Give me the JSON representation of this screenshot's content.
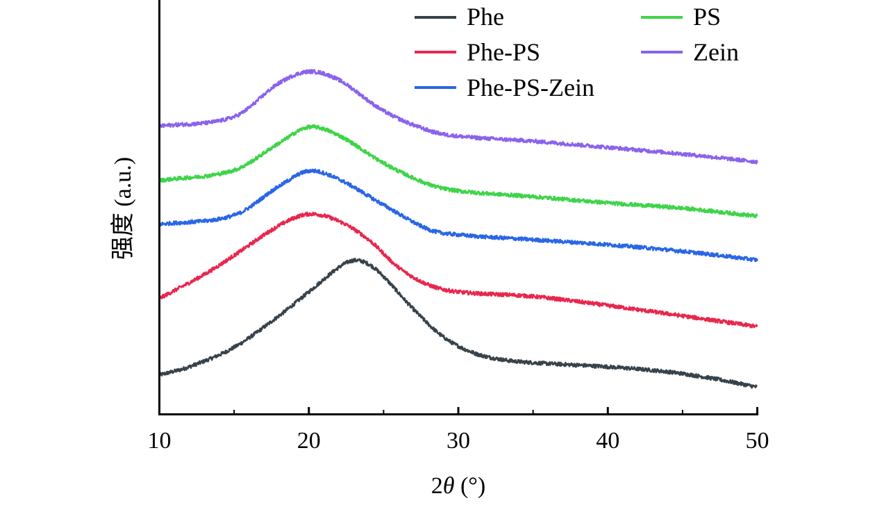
{
  "chart_data": {
    "type": "line",
    "title": "",
    "xlabel_prefix": "2",
    "xlabel_symbol": "θ",
    "xlabel_suffix": " (°)",
    "ylabel": "强度 (a.u.)",
    "xlim": [
      10,
      50
    ],
    "ylim": [
      0,
      100
    ],
    "xticks": [
      10,
      20,
      30,
      40,
      50
    ],
    "xtick_labels": [
      "10",
      "20",
      "30",
      "40",
      "50"
    ],
    "minor_xticks": [
      15,
      25,
      35,
      45
    ],
    "yticks_shown": false,
    "grid": false,
    "legend_position": "top-right",
    "series": [
      {
        "name": "Phe",
        "color": "#37424a",
        "points": [
          [
            10,
            9.4
          ],
          [
            12,
            11.4
          ],
          [
            15,
            16.1
          ],
          [
            18,
            23.7
          ],
          [
            20,
            29.5
          ],
          [
            22,
            35.4
          ],
          [
            23,
            37.1
          ],
          [
            24,
            36.2
          ],
          [
            25,
            33.2
          ],
          [
            27,
            25.3
          ],
          [
            29,
            18.6
          ],
          [
            31,
            14.8
          ],
          [
            33,
            13.1
          ],
          [
            35,
            12.4
          ],
          [
            40,
            11.4
          ],
          [
            44,
            10.2
          ],
          [
            47,
            8.6
          ],
          [
            50,
            6.5
          ]
        ]
      },
      {
        "name": "Phe-PS",
        "color": "#e8274d",
        "points": [
          [
            10,
            27.9
          ],
          [
            13,
            33.7
          ],
          [
            15,
            38.3
          ],
          [
            18,
            45.5
          ],
          [
            20,
            48.3
          ],
          [
            22,
            46.6
          ],
          [
            24,
            42.1
          ],
          [
            26,
            35.4
          ],
          [
            28,
            31.2
          ],
          [
            30,
            29.5
          ],
          [
            35,
            28.4
          ],
          [
            40,
            26.2
          ],
          [
            45,
            23.7
          ],
          [
            50,
            21.1
          ]
        ]
      },
      {
        "name": "Phe-PS-Zein",
        "color": "#2a66e6",
        "points": [
          [
            10,
            45.8
          ],
          [
            15,
            48.0
          ],
          [
            18,
            55.0
          ],
          [
            20,
            58.7
          ],
          [
            22,
            56.7
          ],
          [
            25,
            50.5
          ],
          [
            28,
            44.6
          ],
          [
            30,
            43.3
          ],
          [
            35,
            42.1
          ],
          [
            40,
            40.9
          ],
          [
            45,
            39.3
          ],
          [
            50,
            37.2
          ]
        ]
      },
      {
        "name": "PS",
        "color": "#3fd44a",
        "points": [
          [
            10,
            56.4
          ],
          [
            15,
            58.9
          ],
          [
            18,
            65.4
          ],
          [
            20,
            69.3
          ],
          [
            22,
            67.3
          ],
          [
            25,
            60.6
          ],
          [
            28,
            55.5
          ],
          [
            30,
            53.9
          ],
          [
            35,
            52.5
          ],
          [
            40,
            51.0
          ],
          [
            45,
            49.7
          ],
          [
            50,
            47.8
          ]
        ]
      },
      {
        "name": "Zein",
        "color": "#8a63eb",
        "points": [
          [
            10,
            69.5
          ],
          [
            15,
            71.8
          ],
          [
            18,
            79.9
          ],
          [
            20,
            82.7
          ],
          [
            22,
            80.7
          ],
          [
            25,
            73.2
          ],
          [
            28,
            68.5
          ],
          [
            30,
            67.1
          ],
          [
            35,
            65.9
          ],
          [
            40,
            64.4
          ],
          [
            45,
            62.8
          ],
          [
            50,
            60.9
          ]
        ]
      }
    ],
    "legend": [
      {
        "label": "Phe",
        "color": "#37424a"
      },
      {
        "label": "Phe-PS",
        "color": "#e8274d"
      },
      {
        "label": "Phe-PS-Zein",
        "color": "#2a66e6"
      },
      {
        "label": "PS",
        "color": "#3fd44a"
      },
      {
        "label": "Zein",
        "color": "#8a63eb"
      }
    ]
  }
}
